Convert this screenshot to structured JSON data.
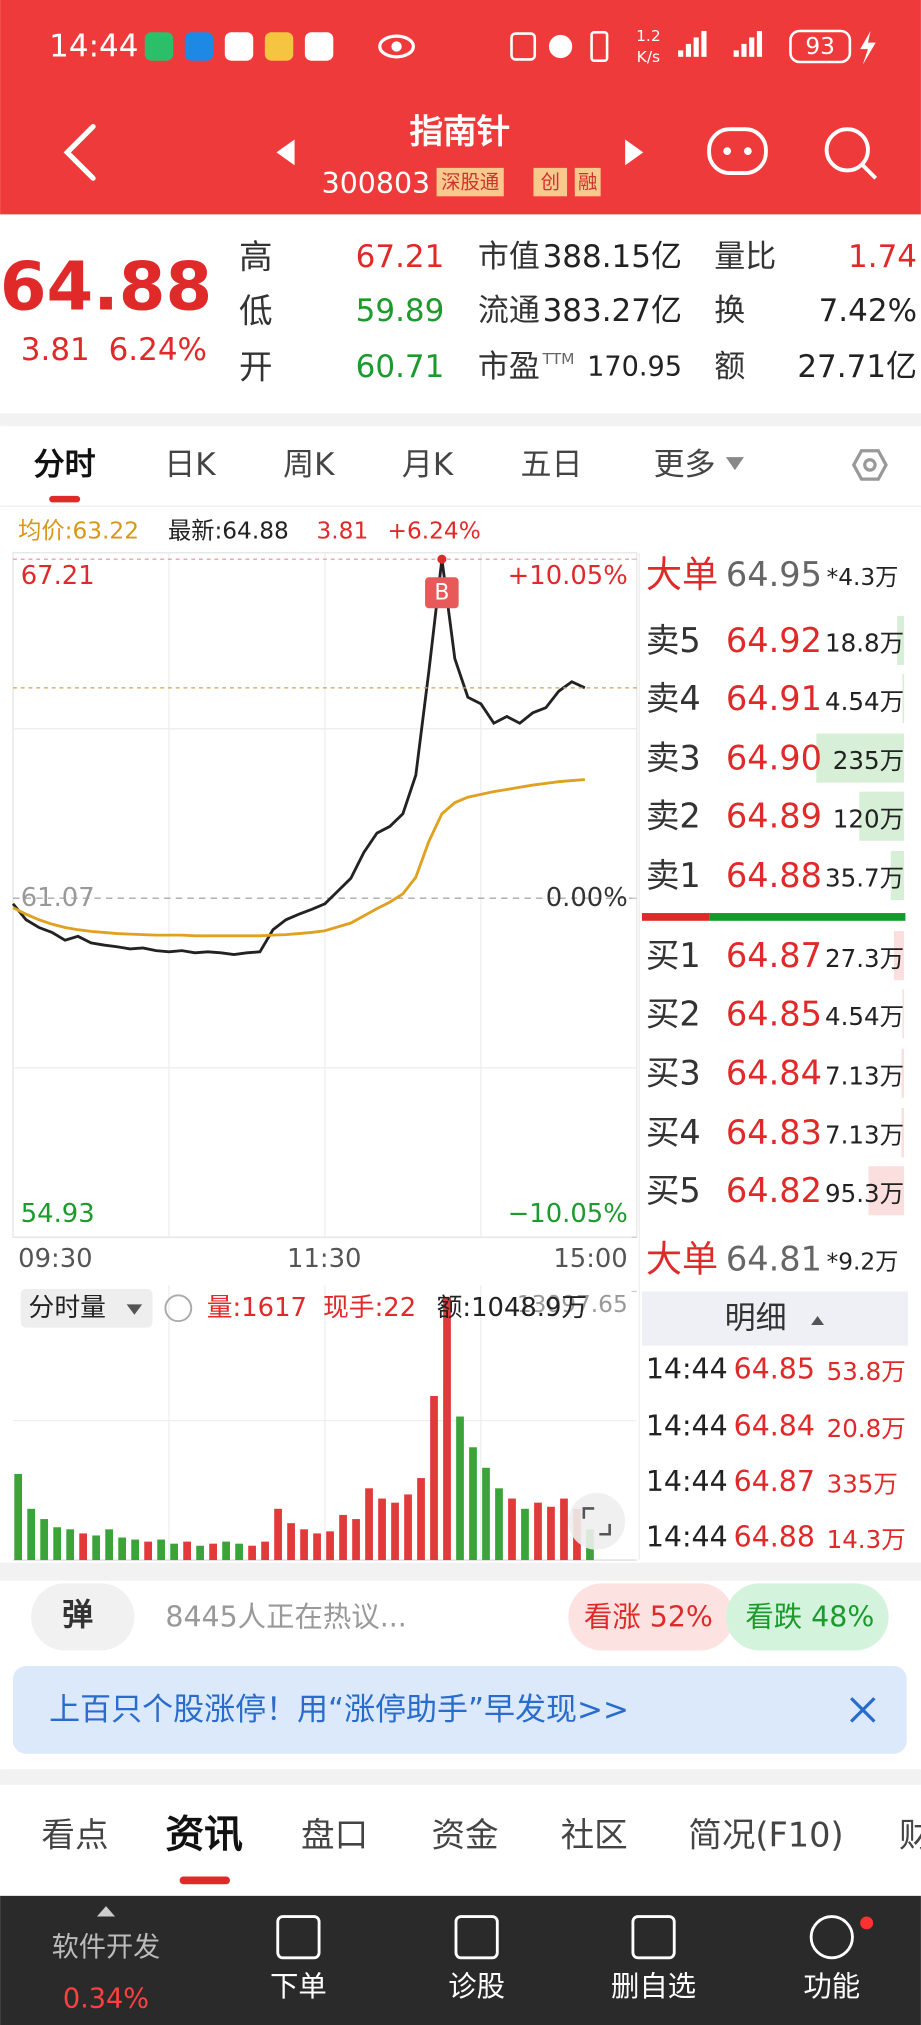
{
  "status_bar": {
    "time": "14:44",
    "net_speed": "1.2",
    "net_unit": "K/s",
    "battery": "93"
  },
  "header": {
    "title": "指南针",
    "code": "300803",
    "tags": [
      "深股通",
      "创",
      "融"
    ]
  },
  "quote": {
    "price": "64.88",
    "change": "3.81",
    "change_pct": "6.24%",
    "stats": [
      [
        {
          "label": "高",
          "value": "67.21"
        },
        {
          "label": "低",
          "value": "59.89"
        },
        {
          "label": "开",
          "value": "60.71"
        }
      ],
      [
        {
          "label": "市值",
          "value": "388.15亿"
        },
        {
          "label": "流通",
          "value": "383.27亿"
        },
        {
          "label": "市盈",
          "sup": "TTM",
          "value": "170.95"
        }
      ],
      [
        {
          "label": "量比",
          "value": "1.74"
        },
        {
          "label": "换",
          "value": "7.42%"
        },
        {
          "label": "额",
          "value": "27.71亿"
        }
      ]
    ]
  },
  "period_tabs": [
    "分时",
    "日K",
    "周K",
    "月K",
    "五日",
    "更多"
  ],
  "summary": {
    "avg": "均价:63.22",
    "latest": "最新:64.88",
    "change": "3.81",
    "change_pct": "+6.24%"
  },
  "chart": {
    "type": "line",
    "ylim": [
      54.93,
      67.21
    ],
    "yticks": [
      67.21,
      61.07,
      54.93
    ],
    "y2lim": [
      -10.05,
      10.05
    ],
    "y2ticks": [
      {
        "value": 10.05,
        "label": "+10.05%"
      },
      {
        "value": 0,
        "label": "0.00%"
      },
      {
        "value": -10.05,
        "label": "−10.05%"
      }
    ],
    "xticks": [
      "09:30",
      "11:30",
      "15:00"
    ],
    "grid": true,
    "marker": "B",
    "series": [
      {
        "color": "#222222",
        "values": [
          60.97,
          60.68,
          60.54,
          60.45,
          60.31,
          60.38,
          60.26,
          60.22,
          60.19,
          60.15,
          60.17,
          60.12,
          60.1,
          60.12,
          60.08,
          60.1,
          60.08,
          60.05,
          60.08,
          60.1,
          60.5,
          60.68,
          60.78,
          60.87,
          60.97,
          61.2,
          61.43,
          61.9,
          62.25,
          62.37,
          62.6,
          63.3,
          65.18,
          67.21,
          65.41,
          64.71,
          64.59,
          64.24,
          64.36,
          64.24,
          64.43,
          64.52,
          64.82,
          64.99,
          64.88
        ]
      },
      {
        "color": "#e0a020",
        "values": [
          60.9,
          60.78,
          60.68,
          60.6,
          60.54,
          60.5,
          60.47,
          60.45,
          60.43,
          60.42,
          60.41,
          60.4,
          60.4,
          60.4,
          60.39,
          60.39,
          60.39,
          60.39,
          60.39,
          60.39,
          60.4,
          60.41,
          60.43,
          60.45,
          60.48,
          60.55,
          60.62,
          60.75,
          60.88,
          61.0,
          61.15,
          61.45,
          62.1,
          62.6,
          62.8,
          62.9,
          62.95,
          63.0,
          63.04,
          63.08,
          63.12,
          63.15,
          63.18,
          63.2,
          63.22
        ]
      }
    ]
  },
  "volume": {
    "type": "bar",
    "title": "分时量",
    "info": [
      "量:1617",
      "现手:22",
      "额:1048.9万"
    ],
    "ylim": [
      0,
      13097.65
    ],
    "yticks": [
      13097.65
    ],
    "up_color": "#e03a3a",
    "down_color": "#3aa43a",
    "values": [
      4200,
      2500,
      2000,
      1600,
      1500,
      1300,
      1200,
      1500,
      1100,
      1000,
      900,
      1000,
      800,
      900,
      700,
      800,
      900,
      800,
      700,
      900,
      2500,
      1800,
      1500,
      1300,
      1400,
      2200,
      2000,
      3500,
      3000,
      2800,
      3200,
      4000,
      8000,
      12800,
      7000,
      5500,
      4500,
      3500,
      3000,
      2500,
      2800,
      2600,
      3000,
      2500,
      1500
    ]
  },
  "order_book": {
    "big_sell": {
      "label": "大单",
      "price": "64.95",
      "volume": "*4.3万"
    },
    "asks": [
      {
        "label": "卖5",
        "price": "64.92",
        "volume": "18.8万"
      },
      {
        "label": "卖4",
        "price": "64.91",
        "volume": "4.54万"
      },
      {
        "label": "卖3",
        "price": "64.90",
        "volume": "235万"
      },
      {
        "label": "卖2",
        "price": "64.89",
        "volume": "120万"
      },
      {
        "label": "卖1",
        "price": "64.88",
        "volume": "35.7万"
      }
    ],
    "bids": [
      {
        "label": "买1",
        "price": "64.87",
        "volume": "27.3万"
      },
      {
        "label": "买2",
        "price": "64.85",
        "volume": "4.54万"
      },
      {
        "label": "买3",
        "price": "64.84",
        "volume": "7.13万"
      },
      {
        "label": "买4",
        "price": "64.83",
        "volume": "7.13万"
      },
      {
        "label": "买5",
        "price": "64.82",
        "volume": "95.3万"
      }
    ],
    "big_buy": {
      "label": "大单",
      "price": "64.81",
      "volume": "*9.2万"
    }
  },
  "trade_detail": {
    "title": "明细",
    "rows": [
      [
        "14:44",
        "64.85",
        "53.8万"
      ],
      [
        "14:44",
        "64.84",
        "20.8万"
      ],
      [
        "14:44",
        "64.87",
        "335万"
      ],
      [
        "14:44",
        "64.88",
        "14.3万"
      ]
    ]
  },
  "social": {
    "button": "弹",
    "text": "8445人正在热议...",
    "bull": "看涨 52%",
    "bear": "看跌 48%"
  },
  "banner": {
    "text": "上百只个股涨停！用“涨停助手”早发现>>"
  },
  "news_tabs": [
    "看点",
    "资讯",
    "盘口",
    "资金",
    "社区",
    "简况(F10)",
    "财"
  ],
  "bottom_nav": {
    "sector": "软件开发",
    "sector_change": "0.34%",
    "items": [
      "下单",
      "诊股",
      "删自选",
      "功能"
    ]
  }
}
